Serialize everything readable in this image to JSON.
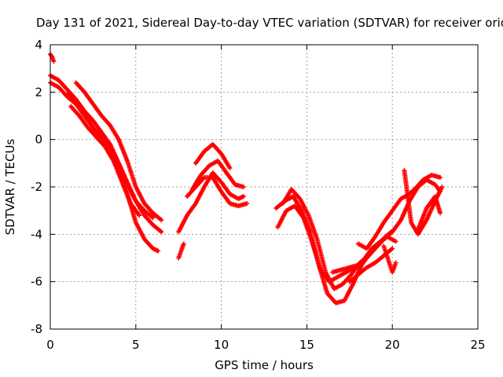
{
  "chart_data": {
    "type": "scatter",
    "title": "Day 131 of 2021, Sidereal Day-to-day VTEC variation (SDTVAR) for receiver orid",
    "xlabel": "GPS time / hours",
    "ylabel": "SDTVAR / TECUs",
    "xlim": [
      0,
      25
    ],
    "ylim": [
      -8,
      4
    ],
    "xticks": [
      0,
      5,
      10,
      15,
      20,
      25
    ],
    "yticks": [
      -8,
      -6,
      -4,
      -2,
      0,
      2,
      4
    ],
    "grid": true,
    "marker": "+",
    "color": "#ff0000",
    "series": [
      {
        "name": "track-1",
        "x": [
          0.0,
          0.1,
          0.2
        ],
        "y": [
          3.6,
          3.5,
          3.3
        ]
      },
      {
        "name": "track-2",
        "x": [
          0.0,
          0.5,
          1.0,
          1.5,
          2.0,
          2.5,
          3.0,
          3.5,
          4.0,
          4.5,
          5.0,
          5.5,
          6.0,
          6.3
        ],
        "y": [
          2.4,
          2.2,
          1.8,
          1.5,
          1.0,
          0.5,
          0.0,
          -0.6,
          -1.3,
          -2.3,
          -3.5,
          -4.2,
          -4.6,
          -4.7
        ]
      },
      {
        "name": "track-3",
        "x": [
          0.0,
          0.5,
          1.0,
          1.5,
          2.0,
          2.5,
          3.0,
          3.5,
          4.0,
          4.5,
          5.0,
          5.5,
          6.0,
          6.5
        ],
        "y": [
          2.7,
          2.5,
          2.1,
          1.7,
          1.2,
          0.8,
          0.3,
          -0.2,
          -1.0,
          -1.9,
          -2.6,
          -3.2,
          -3.6,
          -3.9
        ]
      },
      {
        "name": "track-4",
        "x": [
          1.5,
          2.0,
          2.5,
          3.0,
          3.5,
          4.0,
          4.5,
          5.0,
          5.5,
          6.0,
          6.5
        ],
        "y": [
          2.4,
          2.0,
          1.5,
          1.0,
          0.6,
          0.0,
          -0.9,
          -2.0,
          -2.7,
          -3.1,
          -3.4
        ]
      },
      {
        "name": "track-5",
        "x": [
          1.0,
          1.5,
          2.0,
          2.5,
          3.0,
          3.5,
          4.0,
          4.5,
          5.0,
          5.5,
          6.0
        ],
        "y": [
          1.9,
          1.5,
          1.1,
          0.5,
          0.1,
          -0.3,
          -1.0,
          -1.8,
          -2.6,
          -3.0,
          -3.3
        ]
      },
      {
        "name": "track-6",
        "x": [
          1.2,
          1.7,
          2.2,
          2.7,
          3.2,
          3.7,
          4.2,
          4.7,
          5.2
        ],
        "y": [
          1.4,
          1.0,
          0.5,
          0.1,
          -0.3,
          -0.9,
          -1.8,
          -2.7,
          -3.2
        ]
      },
      {
        "name": "track-7",
        "x": [
          7.5,
          7.8
        ],
        "y": [
          -5.0,
          -4.4
        ]
      },
      {
        "name": "track-8",
        "x": [
          7.5,
          8.0,
          8.5,
          9.0,
          9.5,
          10.0,
          10.5,
          11.0,
          11.3
        ],
        "y": [
          -3.9,
          -3.2,
          -2.7,
          -2.0,
          -1.4,
          -1.8,
          -2.3,
          -2.5,
          -2.4
        ]
      },
      {
        "name": "track-9",
        "x": [
          8.3,
          8.8,
          9.3,
          9.8,
          10.3,
          10.8,
          11.3
        ],
        "y": [
          -2.1,
          -1.5,
          -1.1,
          -0.9,
          -1.4,
          -1.9,
          -2.0
        ]
      },
      {
        "name": "track-10",
        "x": [
          8.0,
          8.5,
          9.0,
          9.5,
          10.0,
          10.5,
          11.0,
          11.5
        ],
        "y": [
          -2.4,
          -2.0,
          -1.6,
          -1.6,
          -2.2,
          -2.7,
          -2.8,
          -2.7
        ]
      },
      {
        "name": "track-11",
        "x": [
          8.5,
          9.0,
          9.5,
          10.0,
          10.5
        ],
        "y": [
          -1.0,
          -0.5,
          -0.2,
          -0.6,
          -1.2
        ]
      },
      {
        "name": "track-12",
        "x": [
          13.2,
          13.7,
          14.2,
          14.7,
          15.2,
          15.7,
          16.2,
          16.7,
          17.2,
          17.7,
          18.2,
          18.7,
          19.2,
          19.7,
          20.2
        ],
        "y": [
          -2.9,
          -2.6,
          -2.4,
          -3.0,
          -3.9,
          -5.3,
          -6.5,
          -6.9,
          -6.8,
          -6.1,
          -5.3,
          -4.8,
          -4.4,
          -4.1,
          -4.3
        ]
      },
      {
        "name": "track-13",
        "x": [
          13.3,
          13.8,
          14.3,
          14.8,
          15.3,
          15.8,
          16.3,
          16.8,
          17.3,
          17.8,
          18.3,
          18.8,
          19.3,
          19.8
        ],
        "y": [
          -3.7,
          -3.0,
          -2.8,
          -3.3,
          -4.3,
          -5.5,
          -6.0,
          -5.8,
          -5.6,
          -5.4,
          -5.1,
          -4.6,
          -4.3,
          -4.0
        ]
      },
      {
        "name": "track-14",
        "x": [
          13.6,
          14.1,
          14.6,
          15.1,
          15.6,
          16.1,
          16.6,
          17.1,
          17.6,
          18.1,
          18.6,
          19.1,
          19.6,
          20.1
        ],
        "y": [
          -2.7,
          -2.1,
          -2.5,
          -3.2,
          -4.2,
          -5.6,
          -6.3,
          -6.1,
          -5.7,
          -5.2,
          -4.9,
          -4.5,
          -4.1,
          -3.8
        ]
      },
      {
        "name": "track-15",
        "x": [
          16.5,
          17.0,
          17.5,
          18.0,
          18.5,
          19.0,
          19.5,
          20.0,
          20.5,
          21.0,
          21.5,
          22.0,
          22.5,
          22.8
        ],
        "y": [
          -5.6,
          -5.5,
          -5.4,
          -5.3,
          -5.0,
          -4.6,
          -4.2,
          -3.9,
          -3.4,
          -2.6,
          -2.0,
          -1.7,
          -1.9,
          -2.2
        ]
      },
      {
        "name": "track-16",
        "x": [
          17.5,
          18.0,
          18.5,
          19.0,
          19.5,
          20.0
        ],
        "y": [
          -6.0,
          -5.7,
          -5.4,
          -5.2,
          -4.9,
          -4.6
        ]
      },
      {
        "name": "track-17",
        "x": [
          18.0,
          18.5,
          19.0,
          19.5,
          20.0,
          20.5,
          21.0
        ],
        "y": [
          -4.4,
          -4.6,
          -4.1,
          -3.5,
          -3.0,
          -2.5,
          -2.3
        ]
      },
      {
        "name": "track-18",
        "x": [
          19.5,
          20.0,
          20.2
        ],
        "y": [
          -4.5,
          -5.6,
          -5.2
        ]
      },
      {
        "name": "track-19",
        "x": [
          20.7,
          21.1,
          21.5,
          22.0,
          22.5,
          22.9
        ],
        "y": [
          -1.3,
          -3.5,
          -4.0,
          -3.4,
          -2.6,
          -2.0
        ]
      },
      {
        "name": "track-20",
        "x": [
          20.8,
          21.3,
          21.8,
          22.3,
          22.8
        ],
        "y": [
          -2.4,
          -2.1,
          -1.7,
          -1.5,
          -1.6
        ]
      },
      {
        "name": "track-21",
        "x": [
          21.5,
          22.0,
          22.5,
          22.8
        ],
        "y": [
          -3.8,
          -2.9,
          -2.4,
          -3.1
        ]
      }
    ]
  }
}
